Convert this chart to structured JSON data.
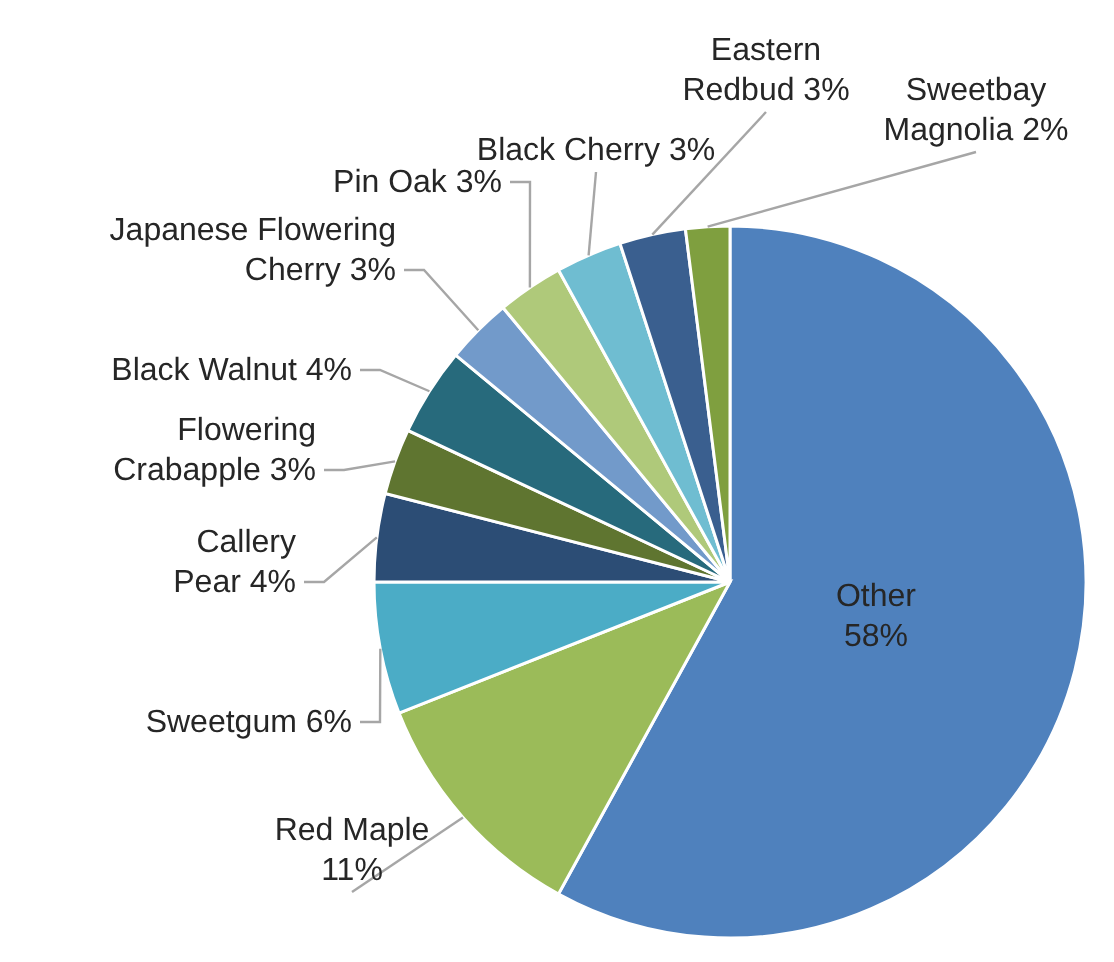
{
  "chart_data": {
    "type": "pie",
    "categories": [
      "Other",
      "Red Maple",
      "Sweetgum",
      "Callery Pear",
      "Flowering Crabapple",
      "Black Walnut",
      "Japanese Flowering Cherry",
      "Pin Oak",
      "Black Cherry",
      "Eastern Redbud",
      "Sweetbay Magnolia"
    ],
    "values": [
      58,
      11,
      6,
      4,
      3,
      4,
      3,
      3,
      3,
      3,
      2
    ],
    "value_labels": [
      "58%",
      "11%",
      "6%",
      "4%",
      "3%",
      "4%",
      "3%",
      "3%",
      "3%",
      "3%",
      "2%"
    ],
    "colors": [
      "#4f81bd",
      "#9bbb59",
      "#4bacc6",
      "#2c4d75",
      "#5f7530",
      "#276a7c",
      "#729aca",
      "#afc97a",
      "#6fbdd1",
      "#3a5f8f",
      "#7f9f3f"
    ],
    "legend": false
  }
}
